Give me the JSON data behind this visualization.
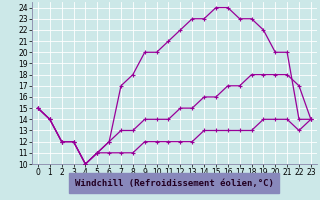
{
  "xlabel": "Windchill (Refroidissement éolien,°C)",
  "bg_color": "#cce8e8",
  "grid_color": "#ffffff",
  "line_color": "#990099",
  "xlim": [
    -0.5,
    23.5
  ],
  "ylim": [
    10,
    24.5
  ],
  "xticks": [
    0,
    1,
    2,
    3,
    4,
    5,
    6,
    7,
    8,
    9,
    10,
    11,
    12,
    13,
    14,
    15,
    16,
    17,
    18,
    19,
    20,
    21,
    22,
    23
  ],
  "yticks": [
    10,
    11,
    12,
    13,
    14,
    15,
    16,
    17,
    18,
    19,
    20,
    21,
    22,
    23,
    24
  ],
  "line1_x": [
    0,
    1,
    2,
    3,
    4,
    5,
    6,
    7,
    8,
    9,
    10,
    11,
    12,
    13,
    14,
    15,
    16,
    17,
    18,
    19,
    20,
    21,
    22,
    23
  ],
  "line1_y": [
    15,
    14,
    12,
    12,
    10,
    11,
    12,
    17,
    18,
    20,
    20,
    21,
    22,
    23,
    23,
    24,
    24,
    23,
    23,
    22,
    20,
    20,
    14,
    14
  ],
  "line2_x": [
    0,
    1,
    2,
    3,
    4,
    5,
    6,
    7,
    8,
    9,
    10,
    11,
    12,
    13,
    14,
    15,
    16,
    17,
    18,
    19,
    20,
    21,
    22,
    23
  ],
  "line2_y": [
    15,
    14,
    12,
    12,
    10,
    11,
    12,
    13,
    13,
    14,
    14,
    14,
    15,
    15,
    16,
    16,
    17,
    17,
    18,
    18,
    18,
    18,
    17,
    14
  ],
  "line3_x": [
    0,
    1,
    2,
    3,
    4,
    5,
    6,
    7,
    8,
    9,
    10,
    11,
    12,
    13,
    14,
    15,
    16,
    17,
    18,
    19,
    20,
    21,
    22,
    23
  ],
  "line3_y": [
    15,
    14,
    12,
    12,
    10,
    11,
    11,
    11,
    11,
    12,
    12,
    12,
    12,
    12,
    13,
    13,
    13,
    13,
    13,
    14,
    14,
    14,
    13,
    14
  ],
  "marker": "+",
  "markersize": 3,
  "linewidth": 0.9,
  "tick_fontsize": 5.5,
  "xlabel_fontsize": 6.5,
  "xlabel_color": "#220022",
  "xlabel_bg": "#8888bb"
}
